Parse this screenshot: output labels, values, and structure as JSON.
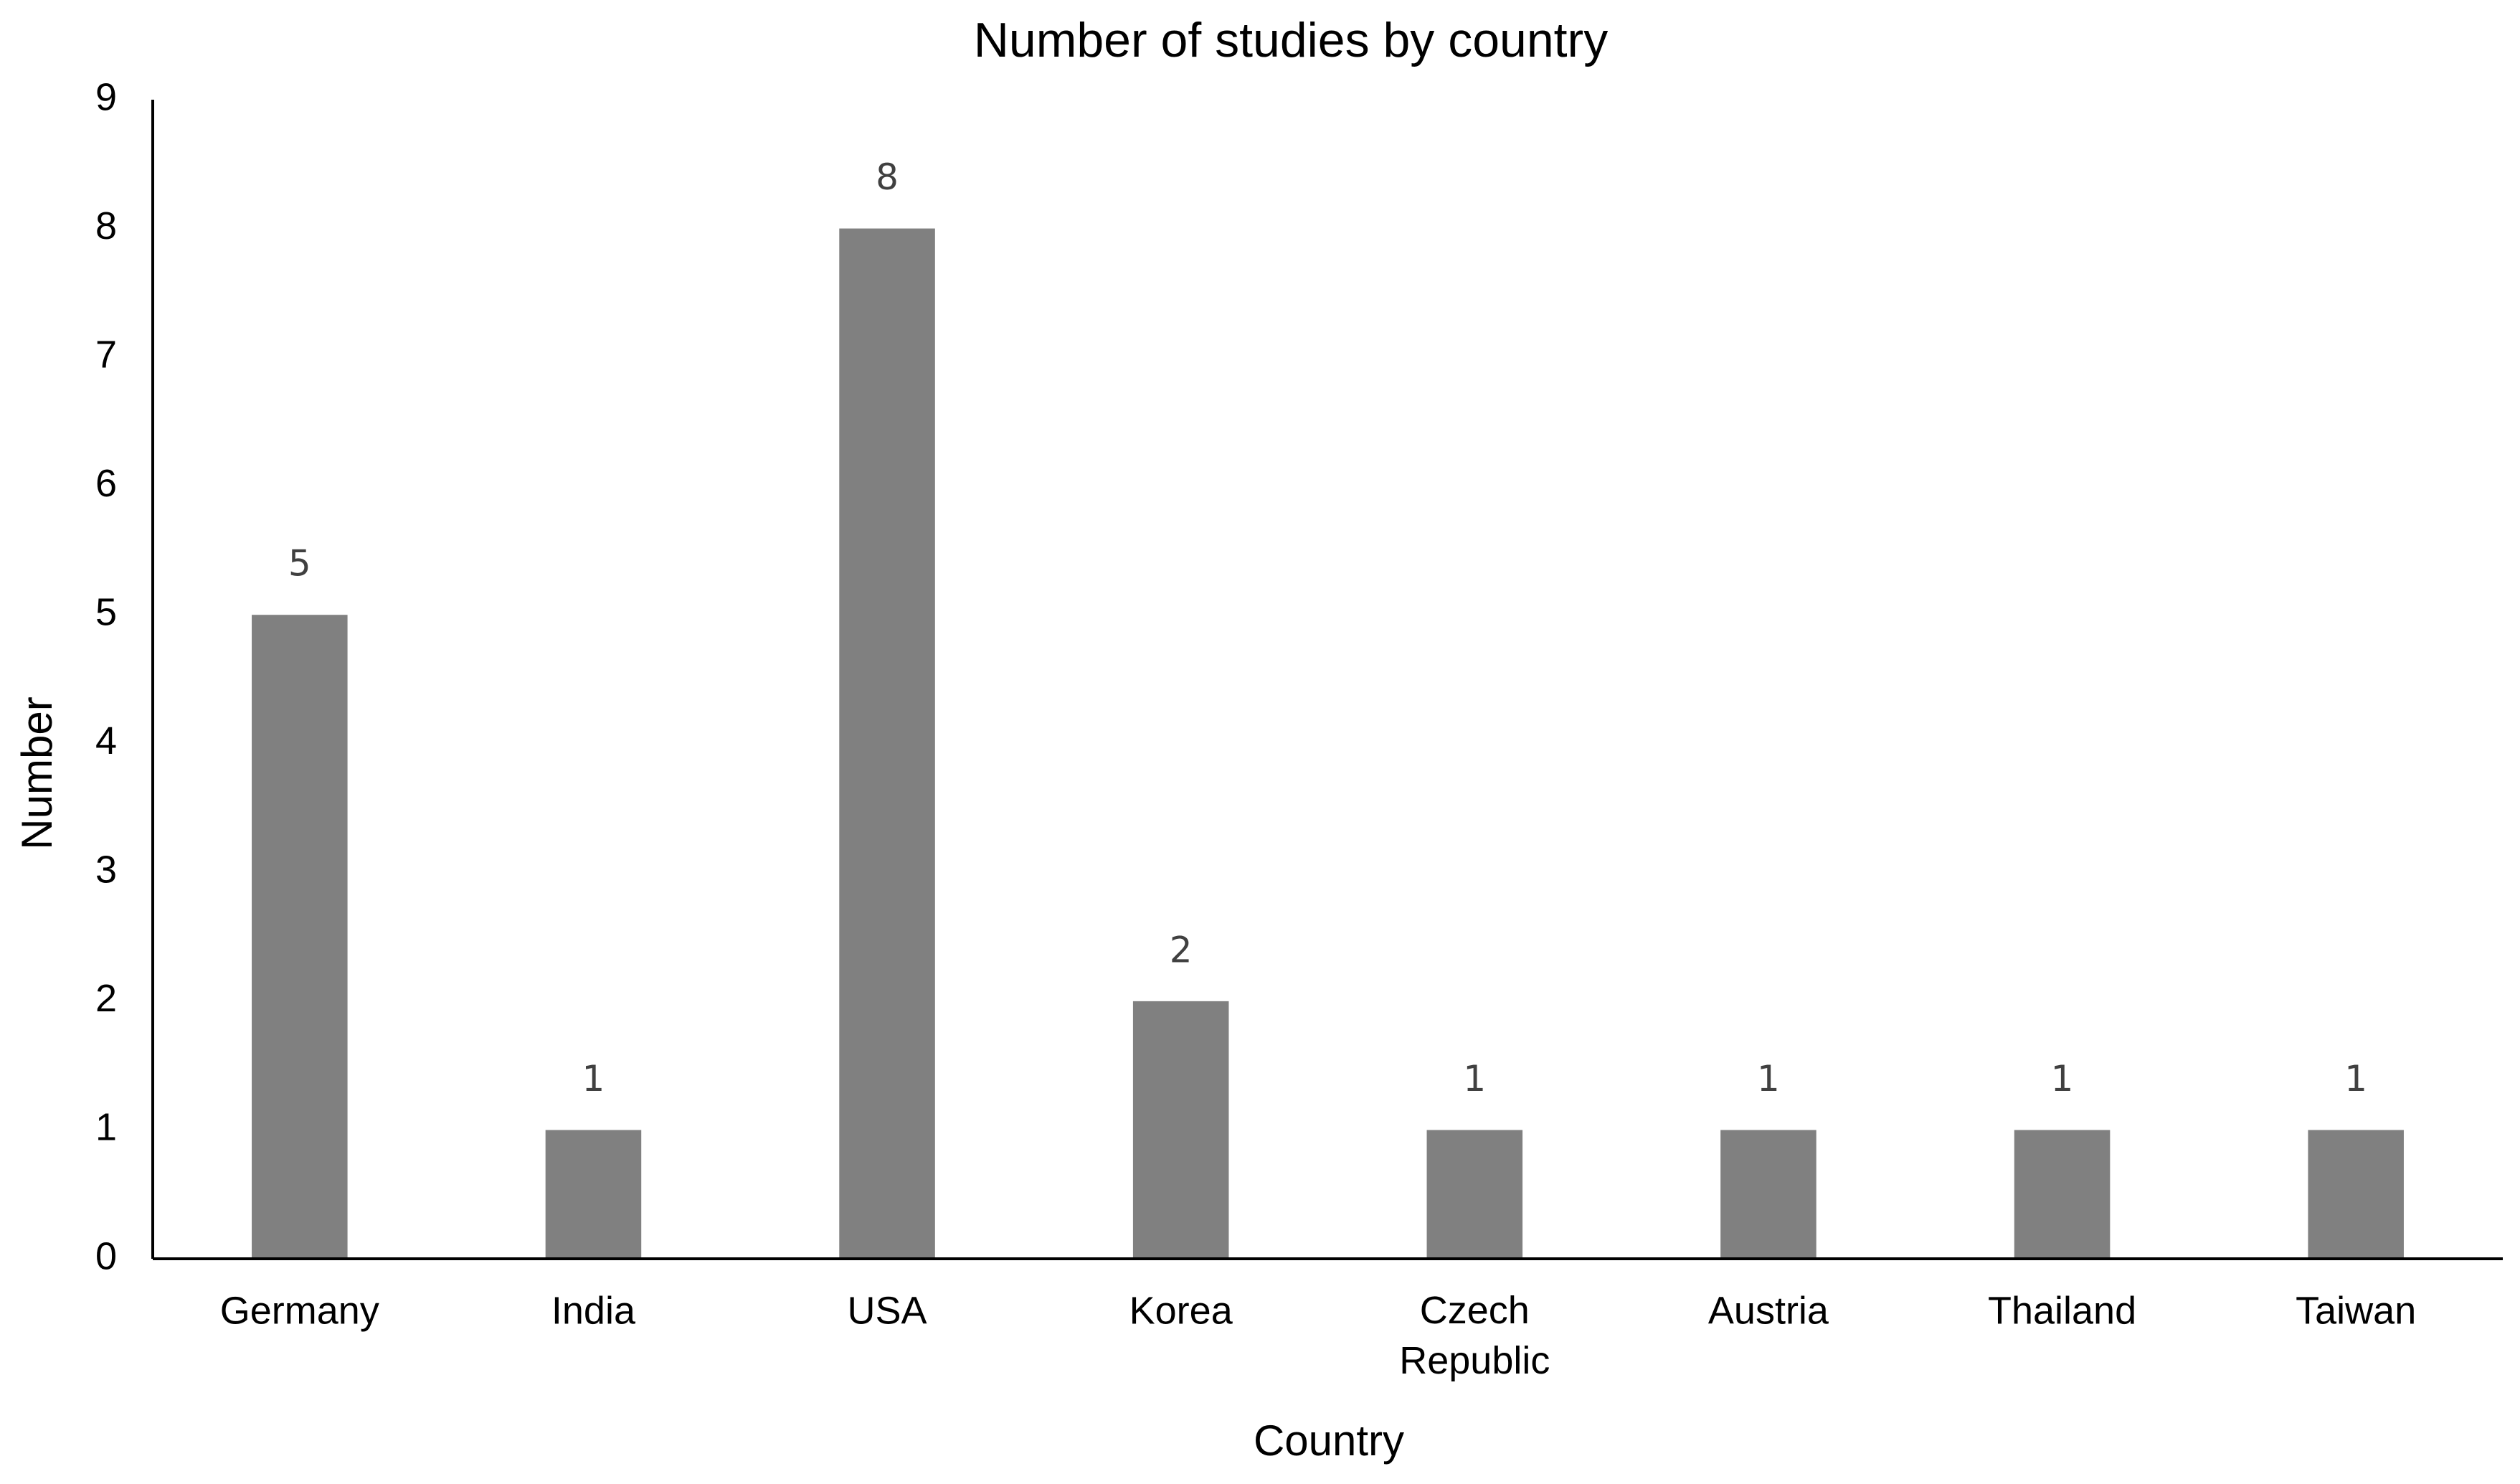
{
  "chart_data": {
    "type": "bar",
    "title": "Number of studies by country",
    "x_label": "Country",
    "y_label": "Number",
    "categories": [
      "Germany",
      "India",
      "USA",
      "Korea",
      "Czech Republic",
      "Austria",
      "Thailand",
      "Taiwan"
    ],
    "values": [
      5,
      1,
      8,
      2,
      1,
      1,
      1,
      1
    ],
    "color": "#808080",
    "ylim": [
      0,
      9
    ],
    "yticks": [
      0,
      1,
      2,
      3,
      4,
      5,
      6,
      7,
      8,
      9
    ],
    "grid": false,
    "data_labels": true
  }
}
